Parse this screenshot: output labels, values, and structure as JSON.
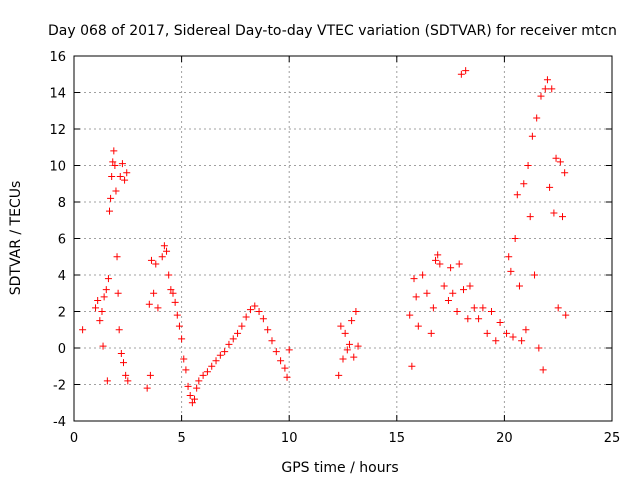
{
  "chart_data": {
    "type": "scatter",
    "title": "Day 068 of 2017, Sidereal Day-to-day VTEC variation (SDTVAR) for receiver mtcn",
    "xlabel": "GPS time / hours",
    "ylabel": "SDTVAR / TECUs",
    "xlim": [
      0,
      25
    ],
    "ylim": [
      -4,
      16
    ],
    "xticks": [
      0,
      5,
      10,
      15,
      20,
      25
    ],
    "yticks": [
      -4,
      -2,
      0,
      2,
      4,
      6,
      8,
      10,
      12,
      14,
      16
    ],
    "grid": true,
    "marker": "+",
    "color": "#ff0000",
    "series": [
      {
        "name": "SDTVAR",
        "points": [
          [
            0.4,
            1.0
          ],
          [
            1.0,
            2.2
          ],
          [
            1.1,
            2.6
          ],
          [
            1.2,
            1.5
          ],
          [
            1.3,
            2.0
          ],
          [
            1.35,
            0.1
          ],
          [
            1.4,
            2.8
          ],
          [
            1.5,
            3.2
          ],
          [
            1.55,
            -1.8
          ],
          [
            1.6,
            3.8
          ],
          [
            1.65,
            7.5
          ],
          [
            1.7,
            8.2
          ],
          [
            1.75,
            9.4
          ],
          [
            1.8,
            10.2
          ],
          [
            1.85,
            10.8
          ],
          [
            1.9,
            10.0
          ],
          [
            1.95,
            8.6
          ],
          [
            2.0,
            5.0
          ],
          [
            2.05,
            3.0
          ],
          [
            2.1,
            1.0
          ],
          [
            2.15,
            9.4
          ],
          [
            2.2,
            -0.3
          ],
          [
            2.25,
            10.1
          ],
          [
            2.3,
            -0.8
          ],
          [
            2.35,
            9.2
          ],
          [
            2.4,
            -1.5
          ],
          [
            2.45,
            9.6
          ],
          [
            2.5,
            -1.8
          ],
          [
            3.4,
            -2.2
          ],
          [
            3.5,
            2.4
          ],
          [
            3.55,
            -1.5
          ],
          [
            3.6,
            4.8
          ],
          [
            3.7,
            3.0
          ],
          [
            3.8,
            4.6
          ],
          [
            3.9,
            2.2
          ],
          [
            4.1,
            5.0
          ],
          [
            4.2,
            5.6
          ],
          [
            4.3,
            5.3
          ],
          [
            4.4,
            4.0
          ],
          [
            4.5,
            3.2
          ],
          [
            4.6,
            3.0
          ],
          [
            4.7,
            2.5
          ],
          [
            4.8,
            1.8
          ],
          [
            4.9,
            1.2
          ],
          [
            5.0,
            0.5
          ],
          [
            5.1,
            -0.6
          ],
          [
            5.2,
            -1.2
          ],
          [
            5.3,
            -2.1
          ],
          [
            5.4,
            -2.6
          ],
          [
            5.5,
            -3.0
          ],
          [
            5.6,
            -2.8
          ],
          [
            5.7,
            -2.2
          ],
          [
            5.8,
            -1.8
          ],
          [
            6.0,
            -1.5
          ],
          [
            6.2,
            -1.3
          ],
          [
            6.4,
            -1.0
          ],
          [
            6.6,
            -0.7
          ],
          [
            6.8,
            -0.4
          ],
          [
            7.0,
            -0.2
          ],
          [
            7.2,
            0.2
          ],
          [
            7.4,
            0.5
          ],
          [
            7.6,
            0.8
          ],
          [
            7.8,
            1.2
          ],
          [
            8.0,
            1.7
          ],
          [
            8.2,
            2.1
          ],
          [
            8.4,
            2.3
          ],
          [
            8.6,
            2.0
          ],
          [
            8.8,
            1.6
          ],
          [
            9.0,
            1.0
          ],
          [
            9.2,
            0.4
          ],
          [
            9.4,
            -0.2
          ],
          [
            9.6,
            -0.7
          ],
          [
            9.8,
            -1.1
          ],
          [
            9.9,
            -1.6
          ],
          [
            10.0,
            -0.1
          ],
          [
            12.3,
            -1.5
          ],
          [
            12.4,
            1.2
          ],
          [
            12.5,
            -0.6
          ],
          [
            12.6,
            0.8
          ],
          [
            12.7,
            -0.1
          ],
          [
            12.8,
            0.2
          ],
          [
            12.9,
            1.5
          ],
          [
            13.0,
            -0.5
          ],
          [
            13.1,
            2.0
          ],
          [
            13.2,
            0.1
          ],
          [
            15.6,
            1.8
          ],
          [
            15.7,
            -1.0
          ],
          [
            15.8,
            3.8
          ],
          [
            15.9,
            2.8
          ],
          [
            16.0,
            1.2
          ],
          [
            16.2,
            4.0
          ],
          [
            16.4,
            3.0
          ],
          [
            16.6,
            0.8
          ],
          [
            16.7,
            2.2
          ],
          [
            16.8,
            4.8
          ],
          [
            16.9,
            5.1
          ],
          [
            17.0,
            4.6
          ],
          [
            17.2,
            3.4
          ],
          [
            17.4,
            2.6
          ],
          [
            17.5,
            4.4
          ],
          [
            17.6,
            3.0
          ],
          [
            17.8,
            2.0
          ],
          [
            17.9,
            4.6
          ],
          [
            18.0,
            15.0
          ],
          [
            18.1,
            3.2
          ],
          [
            18.2,
            15.2
          ],
          [
            18.3,
            1.6
          ],
          [
            18.4,
            3.4
          ],
          [
            18.6,
            2.2
          ],
          [
            18.8,
            1.6
          ],
          [
            19.0,
            2.2
          ],
          [
            19.2,
            0.8
          ],
          [
            19.4,
            2.0
          ],
          [
            19.6,
            0.4
          ],
          [
            19.8,
            1.4
          ],
          [
            20.1,
            0.8
          ],
          [
            20.2,
            5.0
          ],
          [
            20.3,
            4.2
          ],
          [
            20.4,
            0.6
          ],
          [
            20.5,
            6.0
          ],
          [
            20.6,
            8.4
          ],
          [
            20.7,
            3.4
          ],
          [
            20.8,
            0.4
          ],
          [
            20.9,
            9.0
          ],
          [
            21.0,
            1.0
          ],
          [
            21.1,
            10.0
          ],
          [
            21.2,
            7.2
          ],
          [
            21.3,
            11.6
          ],
          [
            21.4,
            4.0
          ],
          [
            21.5,
            12.6
          ],
          [
            21.6,
            0.0
          ],
          [
            21.7,
            13.8
          ],
          [
            21.8,
            -1.2
          ],
          [
            21.9,
            14.2
          ],
          [
            22.0,
            14.7
          ],
          [
            22.1,
            8.8
          ],
          [
            22.2,
            14.2
          ],
          [
            22.3,
            7.4
          ],
          [
            22.4,
            10.4
          ],
          [
            22.5,
            2.2
          ],
          [
            22.6,
            10.2
          ],
          [
            22.7,
            7.2
          ],
          [
            22.8,
            9.6
          ],
          [
            22.85,
            1.8
          ]
        ]
      }
    ]
  }
}
